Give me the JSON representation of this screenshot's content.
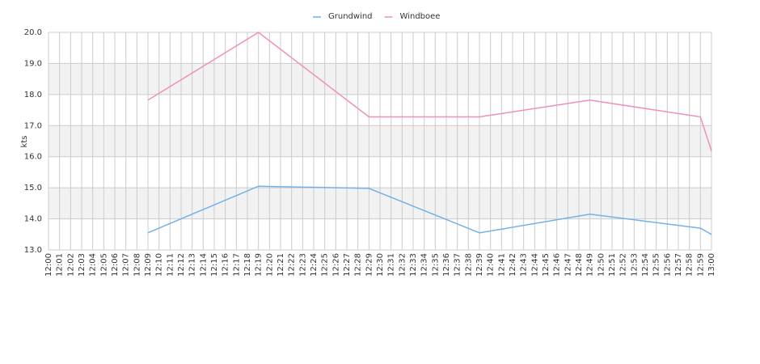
{
  "chart_data": {
    "type": "line",
    "y_label": "kts",
    "categories": [
      "12:00",
      "12:01",
      "12:02",
      "12:03",
      "12:04",
      "12:05",
      "12:06",
      "12:07",
      "12:08",
      "12:09",
      "12:10",
      "12:11",
      "12:12",
      "12:13",
      "12:14",
      "12:15",
      "12:16",
      "12:17",
      "12:18",
      "12:19",
      "12:20",
      "12:21",
      "12:22",
      "12:23",
      "12:24",
      "12:25",
      "12:26",
      "12:27",
      "12:28",
      "12:29",
      "12:30",
      "12:31",
      "12:32",
      "12:33",
      "12:34",
      "12:35",
      "12:36",
      "12:37",
      "12:38",
      "12:39",
      "12:40",
      "12:41",
      "12:42",
      "12:43",
      "12:44",
      "12:45",
      "12:46",
      "12:47",
      "12:48",
      "12:49",
      "12:50",
      "12:51",
      "12:52",
      "12:53",
      "12:54",
      "12:55",
      "12:56",
      "12:57",
      "12:58",
      "12:59",
      "13:00"
    ],
    "series": [
      {
        "name": "Grundwind",
        "color": "#74b1e8",
        "x": [
          "12:09",
          "12:19",
          "12:29",
          "12:39",
          "12:49",
          "12:59",
          "13:00"
        ],
        "values": [
          13.55,
          15.05,
          14.98,
          13.55,
          14.15,
          13.7,
          13.5
        ]
      },
      {
        "name": "Windboee",
        "color": "#ee8fbd",
        "x": [
          "12:09",
          "12:19",
          "12:29",
          "12:39",
          "12:49",
          "12:59",
          "13:00"
        ],
        "values": [
          17.82,
          20.0,
          17.28,
          17.28,
          17.82,
          17.28,
          16.18
        ]
      }
    ],
    "ylim": [
      13,
      20
    ],
    "yticks": [
      {
        "value": 13,
        "label": "13.0"
      },
      {
        "value": 14,
        "label": "14.0"
      },
      {
        "value": 15,
        "label": "15.0"
      },
      {
        "value": 16,
        "label": "16.0"
      },
      {
        "value": 17,
        "label": "17.0"
      },
      {
        "value": 18,
        "label": "18.0"
      },
      {
        "value": 19,
        "label": "19.0"
      },
      {
        "value": 20,
        "label": "20.0"
      }
    ],
    "grid": true,
    "band_color": "#f2f2f2",
    "legend": "top"
  }
}
